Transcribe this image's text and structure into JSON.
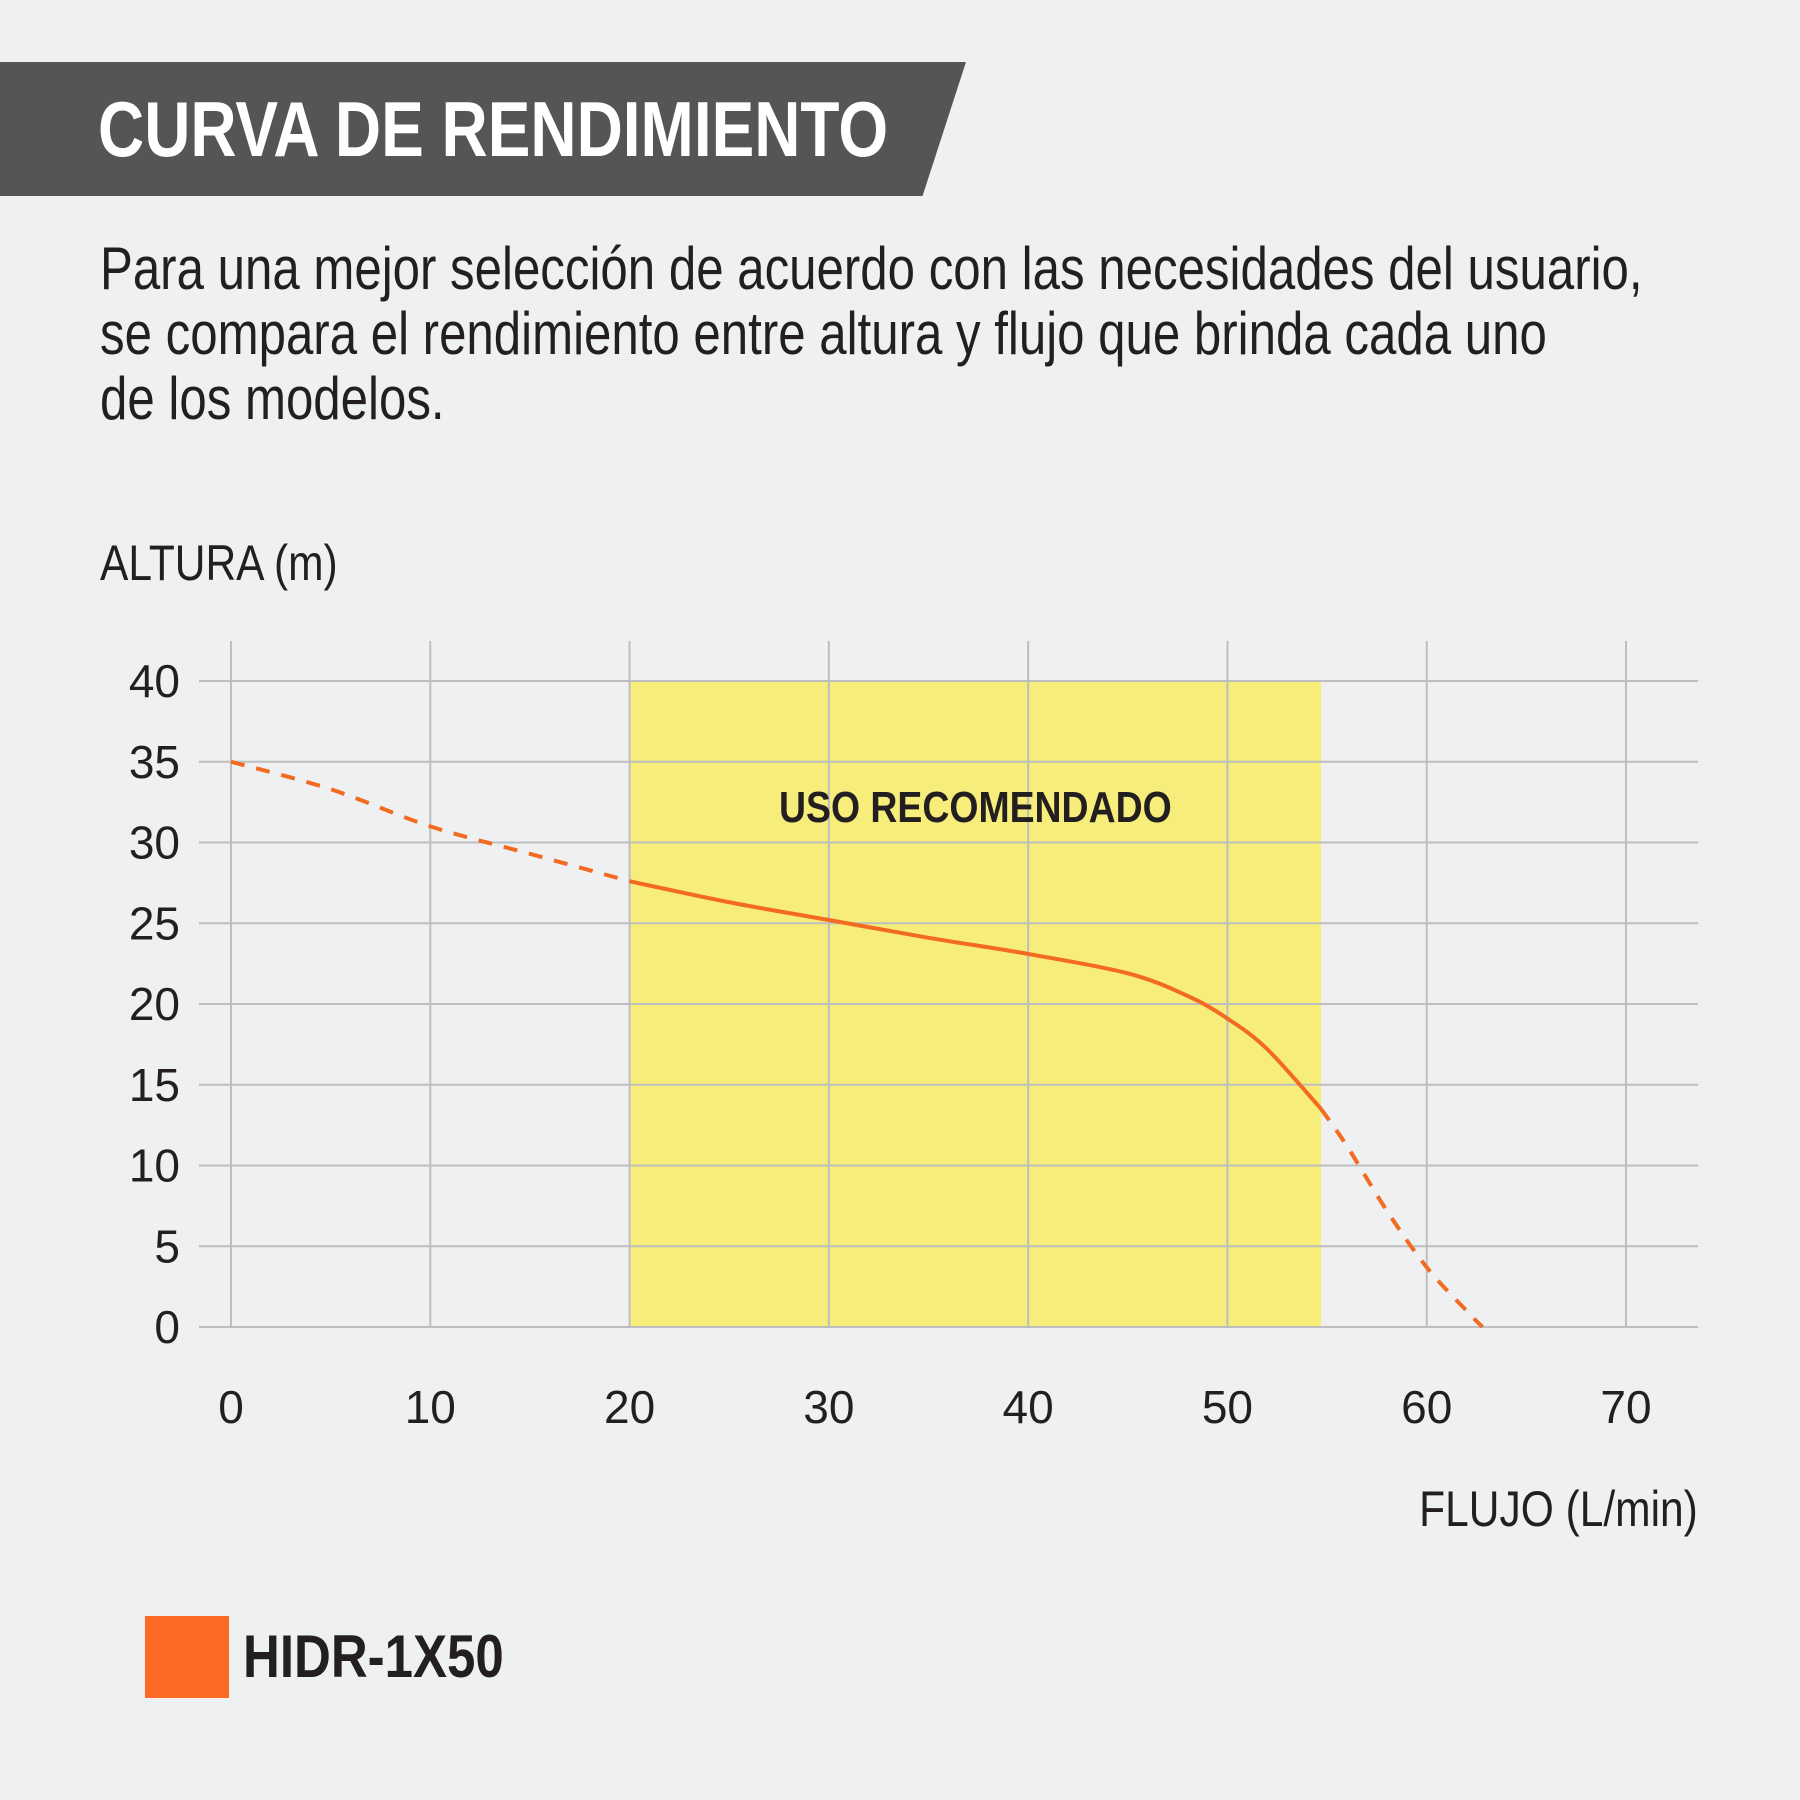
{
  "header": {
    "title": "CURVA DE RENDIMIENTO"
  },
  "description": [
    "Para una mejor selección de acuerdo con las necesidades del usuario,",
    "se compara el rendimiento entre altura y flujo que brinda cada uno",
    "de los modelos."
  ],
  "colors": {
    "background": "#eff0f1",
    "banner": "#555556",
    "curve": "#f26b21",
    "legend_swatch": "#fd6a23",
    "recommended_region": "#f7ed7b",
    "grid": "#bcbec0"
  },
  "chart_data": {
    "type": "line",
    "title": "",
    "xlabel": "FLUJO (L/min)",
    "ylabel": "ALTURA (m)",
    "xlim": [
      0,
      70
    ],
    "ylim": [
      0,
      40
    ],
    "x_ticks": [
      0,
      10,
      20,
      30,
      40,
      50,
      60,
      70
    ],
    "y_ticks": [
      0,
      5,
      10,
      15,
      20,
      25,
      30,
      35,
      40
    ],
    "grid": true,
    "recommended_region": {
      "label": "USO RECOMENDADO",
      "x_range": [
        20,
        54.7
      ],
      "y_range": [
        0,
        40
      ]
    },
    "series": [
      {
        "name": "HIDR-1X50",
        "segments": [
          {
            "style": "dashed",
            "x": [
              0,
              5,
              10,
              15,
              20
            ],
            "y": [
              35,
              33.3,
              31,
              29.3,
              27.6
            ]
          },
          {
            "style": "solid",
            "x": [
              20,
              25,
              30,
              35,
              40,
              45,
              48,
              50,
              52,
              54.7
            ],
            "y": [
              27.6,
              26.3,
              25.2,
              24.1,
              23.1,
              21.9,
              20.5,
              19.1,
              17.2,
              13.5
            ]
          },
          {
            "style": "dashed",
            "x": [
              54.7,
              56,
              58,
              60,
              62,
              62.8
            ],
            "y": [
              13.5,
              11.2,
              7.2,
              3.7,
              1.0,
              0
            ]
          }
        ]
      }
    ],
    "legend": [
      {
        "label": "HIDR-1X50",
        "color": "#fd6a23"
      }
    ]
  }
}
